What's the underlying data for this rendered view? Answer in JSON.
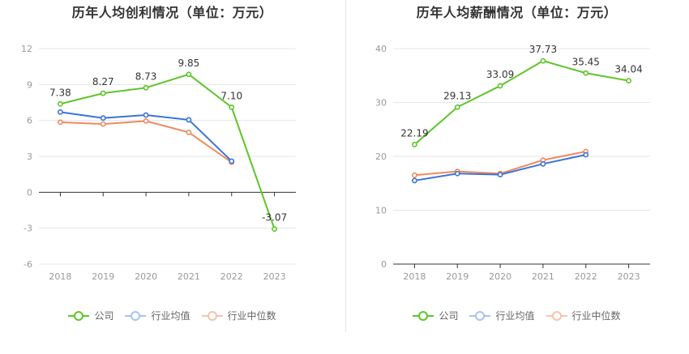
{
  "colors": {
    "company": "#5ec52a",
    "industry_avg": "#3b73d9",
    "industry_median": "#f08a5d",
    "grid": "#e6e6e6",
    "axis": "#333333",
    "tick_text": "#999999",
    "label_text": "#333333"
  },
  "legend": [
    "公司",
    "行业均值",
    "行业中位数"
  ],
  "chart_data": [
    {
      "type": "line",
      "title": "历年人均创利情况（单位：万元）",
      "categories": [
        "2018",
        "2019",
        "2020",
        "2021",
        "2022",
        "2023"
      ],
      "ylim": [
        -6,
        12
      ],
      "yticks": [
        -6,
        -3,
        0,
        3,
        6,
        9,
        12
      ],
      "grid": true,
      "series": [
        {
          "name": "公司",
          "values": [
            7.38,
            8.27,
            8.73,
            9.85,
            7.1,
            -3.07
          ],
          "labels": [
            "7.38",
            "8.27",
            "8.73",
            "9.85",
            "7.10",
            "-3.07"
          ]
        },
        {
          "name": "行业均值",
          "values": [
            6.7,
            6.2,
            6.45,
            6.05,
            2.6,
            null
          ]
        },
        {
          "name": "行业中位数",
          "values": [
            5.85,
            5.7,
            5.95,
            5.0,
            2.5,
            null
          ]
        }
      ]
    },
    {
      "type": "line",
      "title": "历年人均薪酬情况（单位：万元）",
      "categories": [
        "2018",
        "2019",
        "2020",
        "2021",
        "2022",
        "2023"
      ],
      "ylim": [
        0,
        40
      ],
      "yticks": [
        0,
        10,
        20,
        30,
        40
      ],
      "grid": true,
      "series": [
        {
          "name": "公司",
          "values": [
            22.19,
            29.13,
            33.09,
            37.73,
            35.45,
            34.04
          ],
          "labels": [
            "22.19",
            "29.13",
            "33.09",
            "37.73",
            "35.45",
            "34.04"
          ]
        },
        {
          "name": "行业均值",
          "values": [
            15.5,
            16.8,
            16.6,
            18.6,
            20.3,
            null
          ]
        },
        {
          "name": "行业中位数",
          "values": [
            16.5,
            17.2,
            16.8,
            19.3,
            20.9,
            null
          ]
        }
      ]
    }
  ]
}
